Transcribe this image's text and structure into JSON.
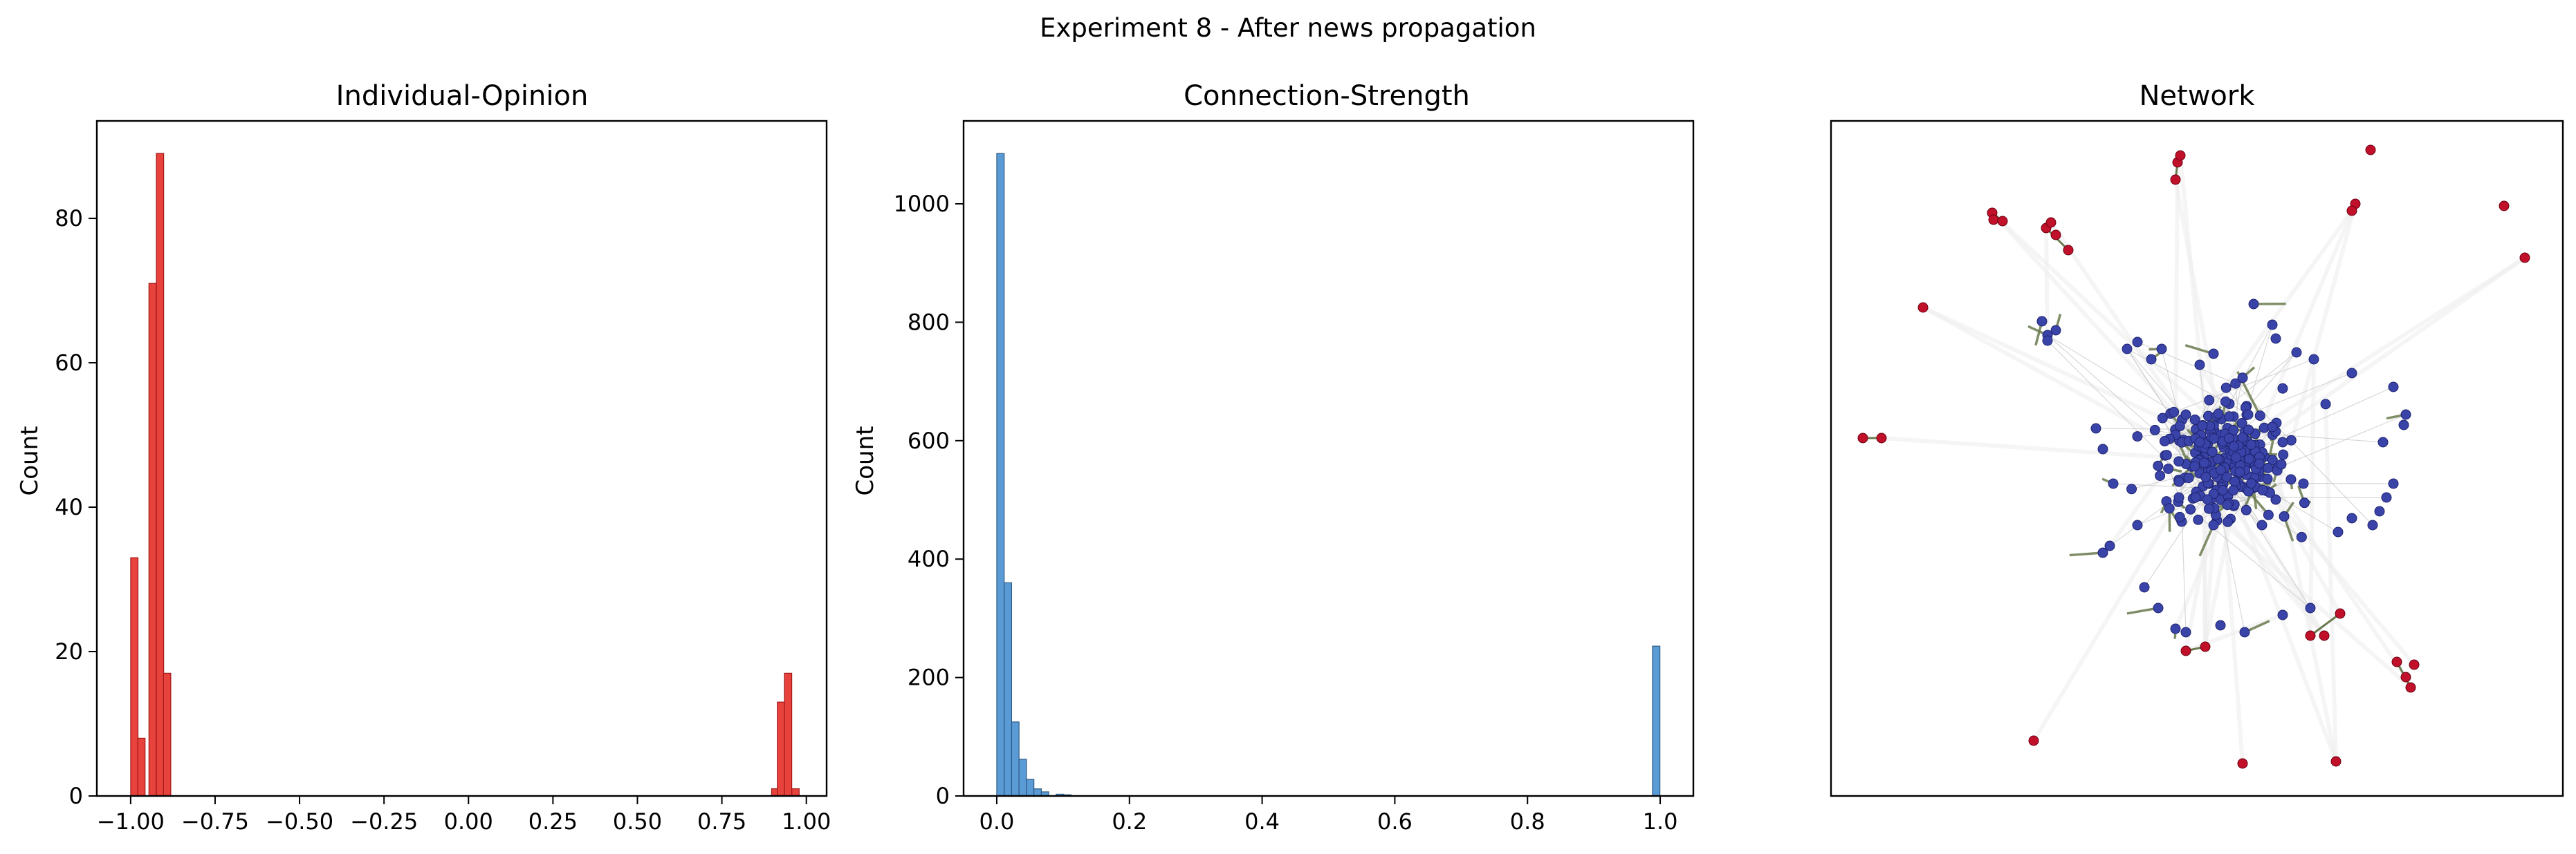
{
  "figure": {
    "suptitle": "Experiment 8 - After news propagation"
  },
  "chart_data": [
    {
      "type": "bar",
      "title": "Individual-Opinion",
      "xlabel": "",
      "ylabel": "Count",
      "xlim": [
        -1.1,
        1.06
      ],
      "ylim": [
        0,
        93.5
      ],
      "bin_width": 0.0216,
      "xticks": [
        -1.0,
        -0.75,
        -0.5,
        -0.25,
        0.0,
        0.25,
        0.5,
        0.75,
        1.0
      ],
      "xtick_labels": [
        "−1.00",
        "−0.75",
        "−0.50",
        "−0.25",
        "0.00",
        "0.25",
        "0.50",
        "0.75",
        "1.00"
      ],
      "yticks": [
        0,
        20,
        40,
        60,
        80
      ],
      "ytick_labels": [
        "0",
        "20",
        "40",
        "60",
        "80"
      ],
      "bars": [
        {
          "x": -0.989,
          "value": 33
        },
        {
          "x": -0.968,
          "value": 8
        },
        {
          "x": -0.935,
          "value": 71
        },
        {
          "x": -0.913,
          "value": 89
        },
        {
          "x": -0.892,
          "value": 17
        },
        {
          "x": 0.908,
          "value": 1
        },
        {
          "x": 0.925,
          "value": 13
        },
        {
          "x": 0.946,
          "value": 17
        },
        {
          "x": 0.968,
          "value": 1
        }
      ],
      "colors": {
        "bar": "#e8423c",
        "edge": "#a01818"
      }
    },
    {
      "type": "bar",
      "title": "Connection-Strength",
      "xlabel": "",
      "ylabel": "Count",
      "xlim": [
        -0.05,
        1.05
      ],
      "ylim": [
        0,
        1140
      ],
      "bin_width": 0.0112,
      "xticks": [
        0.0,
        0.2,
        0.4,
        0.6,
        0.8,
        1.0
      ],
      "xtick_labels": [
        "0.0",
        "0.2",
        "0.4",
        "0.6",
        "0.8",
        "1.0"
      ],
      "yticks": [
        0,
        200,
        400,
        600,
        800,
        1000
      ],
      "ytick_labels": [
        "0",
        "200",
        "400",
        "600",
        "800",
        "1000"
      ],
      "bars": [
        {
          "x": 0.0056,
          "value": 1085
        },
        {
          "x": 0.0168,
          "value": 360
        },
        {
          "x": 0.028,
          "value": 125
        },
        {
          "x": 0.0392,
          "value": 62
        },
        {
          "x": 0.0504,
          "value": 28
        },
        {
          "x": 0.0616,
          "value": 12
        },
        {
          "x": 0.0728,
          "value": 7
        },
        {
          "x": 0.0952,
          "value": 3
        },
        {
          "x": 0.1064,
          "value": 2
        },
        {
          "x": 0.994,
          "value": 253
        }
      ],
      "colors": {
        "bar": "#5b9bd5",
        "edge": "#2d5a85"
      }
    },
    {
      "type": "network",
      "title": "Network",
      "colors": {
        "majority_node": "#3a43a8",
        "minority_node": "#c0102a",
        "strong_edge": "#6a7a4e",
        "weak_edge": "#c8c8c8"
      }
    }
  ]
}
